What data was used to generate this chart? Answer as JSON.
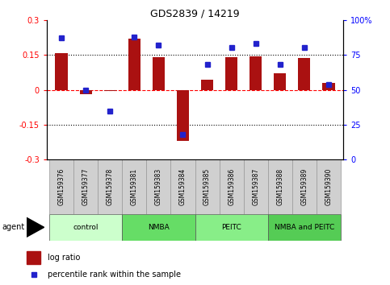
{
  "title": "GDS2839 / 14219",
  "samples": [
    "GSM159376",
    "GSM159377",
    "GSM159378",
    "GSM159381",
    "GSM159383",
    "GSM159384",
    "GSM159385",
    "GSM159386",
    "GSM159387",
    "GSM159388",
    "GSM159389",
    "GSM159390"
  ],
  "log_ratio": [
    0.158,
    -0.02,
    -0.005,
    0.22,
    0.14,
    -0.22,
    0.045,
    0.14,
    0.145,
    0.07,
    0.135,
    0.03
  ],
  "percentile_rank": [
    87,
    50,
    35,
    88,
    82,
    18,
    68,
    80,
    83,
    68,
    80,
    54
  ],
  "groups": [
    {
      "label": "control",
      "start": 0,
      "end": 3,
      "color": "#ccffcc"
    },
    {
      "label": "NMBA",
      "start": 3,
      "end": 6,
      "color": "#66dd66"
    },
    {
      "label": "PEITC",
      "start": 6,
      "end": 9,
      "color": "#88ee88"
    },
    {
      "label": "NMBA and PEITC",
      "start": 9,
      "end": 12,
      "color": "#55cc55"
    }
  ],
  "bar_color": "#aa1111",
  "dot_color": "#2222cc",
  "ylim_left": [
    -0.3,
    0.3
  ],
  "ylim_right": [
    0,
    100
  ],
  "yticks_left": [
    -0.3,
    -0.15,
    0,
    0.15,
    0.3
  ],
  "yticks_right": [
    0,
    25,
    50,
    75,
    100
  ],
  "background_color": "#ffffff",
  "agent_label": "agent",
  "legend": [
    "log ratio",
    "percentile rank within the sample"
  ]
}
